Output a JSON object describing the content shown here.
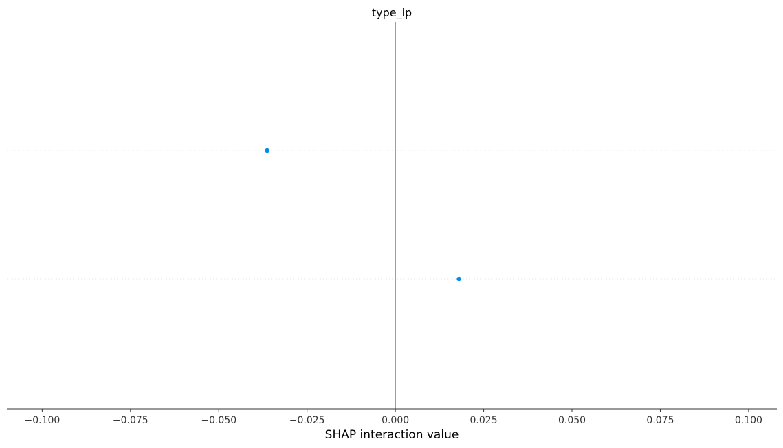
{
  "chart_data": {
    "type": "scatter",
    "title": "type_ip",
    "xlabel": "SHAP interaction value",
    "ylabel": "",
    "xlim": [
      -0.11,
      0.108
    ],
    "x_ticks": [
      -0.1,
      -0.075,
      -0.05,
      -0.025,
      0.0,
      0.025,
      0.05,
      0.075,
      0.1
    ],
    "x_tick_labels": [
      "−0.100",
      "−0.075",
      "−0.050",
      "−0.025",
      "0.000",
      "0.025",
      "0.050",
      "0.075",
      "0.100"
    ],
    "rows": 2,
    "points": [
      {
        "x": -0.0363,
        "row": 0
      },
      {
        "x": 0.018,
        "row": 1
      }
    ],
    "zero_line": true,
    "grid": "dotted horizontal row lines",
    "colors": {
      "point": "#008bea",
      "zero_line": "#999999",
      "axis": "#333333",
      "row_grid": "#e6e6e6"
    }
  }
}
